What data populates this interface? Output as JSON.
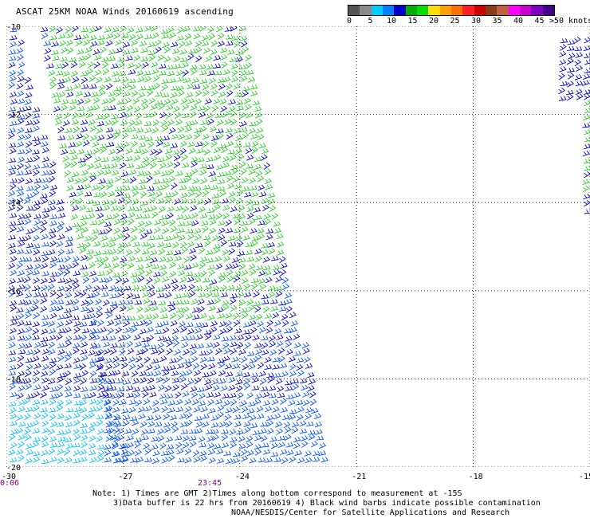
{
  "header": {
    "title": "ASCAT 25KM NOAA Winds 20160619 ascending"
  },
  "legend": {
    "unit_label": ">50 knots",
    "ticks": [
      "0",
      "5",
      "10",
      "15",
      "20",
      "25",
      "30",
      "35",
      "40",
      "45"
    ],
    "colors": [
      "#555555",
      "#8a8a8a",
      "#00ccff",
      "#0080ff",
      "#0000cc",
      "#00b000",
      "#00dd00",
      "#ffdd00",
      "#ffa000",
      "#ff7000",
      "#ff2020",
      "#cc0000",
      "#8b3a1a",
      "#c06040",
      "#ff00ff",
      "#cc00cc",
      "#8000c0",
      "#40008a"
    ]
  },
  "map": {
    "lat_labels": [
      "-10",
      "-12",
      "-14",
      "-16",
      "-18",
      "-20"
    ],
    "lon_labels": [
      "-30",
      "-27",
      "-24",
      "-21",
      "-18",
      "-15"
    ],
    "lat_range": [
      -20,
      -10
    ],
    "lon_range": [
      -30,
      -15
    ],
    "grid_lines": "dotted",
    "swath_colors": {
      "low": "#00bfff",
      "medium": "#0050ff",
      "high": "#0000c8",
      "strong": "#22cc22"
    }
  },
  "times": {
    "left": "0:06",
    "middle": "23:45",
    "color": "#800080"
  },
  "notes": {
    "line1": "Note: 1) Times are GMT 2)Times along bottom correspond to measurement at -15S",
    "line2": "3)Data buffer is 22 hrs from 20160619 4) Black wind barbs indicate possible contamination",
    "line3": "NOAA/NESDIS/Center for Satellite Applications and Research"
  }
}
